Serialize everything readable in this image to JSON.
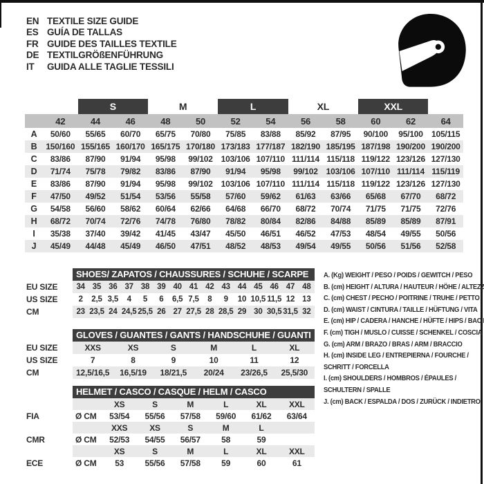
{
  "header": {
    "languages": [
      {
        "code": "EN",
        "text": "TEXTILE SIZE GUIDE"
      },
      {
        "code": "ES",
        "text": "GUÍA DE TALLAS"
      },
      {
        "code": "FR",
        "text": "GUIDE DES TAILLES TEXTILE"
      },
      {
        "code": "DE",
        "text": "TEXTILGRÖßENFÜHRUNG"
      },
      {
        "code": "IT",
        "text": "GUIDA ALLE TAGLIE TESSILI"
      }
    ],
    "logo_icon": "racing-helmet"
  },
  "colors": {
    "dark_bar": "#3d3d3d",
    "number_band": "#c2c2c2",
    "stripe": "#e9e9e9",
    "text": "#2a2a2a",
    "frame": "#101010"
  },
  "main_table": {
    "size_groups": [
      {
        "label": "S",
        "dark": true
      },
      {
        "label": "M",
        "dark": false
      },
      {
        "label": "L",
        "dark": true
      },
      {
        "label": "XL",
        "dark": false
      },
      {
        "label": "XXL",
        "dark": true
      }
    ],
    "numeric_sizes": [
      "42",
      "44",
      "46",
      "48",
      "50",
      "52",
      "54",
      "56",
      "58",
      "60",
      "62",
      "64"
    ],
    "rows": [
      {
        "letter": "A",
        "values": [
          "50/60",
          "55/65",
          "60/70",
          "65/75",
          "70/80",
          "75/85",
          "83/88",
          "85/92",
          "87/95",
          "90/100",
          "95/100",
          "105/115"
        ]
      },
      {
        "letter": "B",
        "values": [
          "150/160",
          "155/165",
          "160/170",
          "165/175",
          "170/180",
          "173/183",
          "177/187",
          "182/190",
          "185/195",
          "187/198",
          "190/200",
          "190/200"
        ]
      },
      {
        "letter": "C",
        "values": [
          "83/86",
          "87/90",
          "91/94",
          "95/98",
          "99/102",
          "103/106",
          "107/110",
          "111/114",
          "115/118",
          "119/122",
          "123/126",
          "127/130"
        ]
      },
      {
        "letter": "D",
        "values": [
          "71/74",
          "75/78",
          "79/82",
          "83/86",
          "87/90",
          "91/94",
          "95/98",
          "99/102",
          "103/106",
          "107/110",
          "111/114",
          "115/119"
        ]
      },
      {
        "letter": "E",
        "values": [
          "83/86",
          "87/90",
          "91/94",
          "95/98",
          "99/102",
          "103/106",
          "107/110",
          "111/114",
          "115/118",
          "119/122",
          "123/126",
          "127/130"
        ]
      },
      {
        "letter": "F",
        "values": [
          "47/50",
          "49/52",
          "51/54",
          "53/56",
          "55/58",
          "57/60",
          "59/62",
          "61/63",
          "63/66",
          "65/68",
          "67/70",
          "68/72"
        ]
      },
      {
        "letter": "G",
        "values": [
          "54/58",
          "56/60",
          "58/62",
          "60/64",
          "62/66",
          "64/68",
          "66/70",
          "68/72",
          "70/74",
          "71/75",
          "71/75",
          "72/76"
        ]
      },
      {
        "letter": "H",
        "values": [
          "68/72",
          "70/74",
          "72/76",
          "74/78",
          "76/80",
          "78/82",
          "80/84",
          "82/86",
          "84/88",
          "85/89",
          "85/89",
          "87/91"
        ]
      },
      {
        "letter": "I",
        "values": [
          "35/38",
          "37/40",
          "39/42",
          "41/45",
          "43/47",
          "45/50",
          "46/51",
          "46/52",
          "47/53",
          "48/54",
          "49/55",
          "50/56"
        ]
      },
      {
        "letter": "J",
        "values": [
          "45/49",
          "44/48",
          "45/49",
          "46/50",
          "47/51",
          "48/52",
          "48/53",
          "49/54",
          "49/55",
          "50/56",
          "51/56",
          "52/58"
        ]
      }
    ]
  },
  "shoes": {
    "title": "SHOES/ ZAPATOS / CHAUSSURES / SCHUHE / SCARPE",
    "rows": [
      {
        "label": "EU SIZE",
        "shaded": true,
        "values": [
          "34",
          "35",
          "36",
          "37",
          "38",
          "39",
          "40",
          "41",
          "42",
          "43",
          "44",
          "45",
          "46",
          "47",
          "48"
        ]
      },
      {
        "label": "US SIZE",
        "shaded": false,
        "values": [
          "2",
          "2,5",
          "3,5",
          "4",
          "5",
          "6",
          "6,5",
          "7,5",
          "8",
          "9",
          "10",
          "10,5",
          "11,5",
          "12",
          "13"
        ]
      },
      {
        "label": "CM",
        "shaded": true,
        "values": [
          "23",
          "23,5",
          "24",
          "24,5",
          "25,5",
          "26",
          "27",
          "27,5",
          "28",
          "28,5",
          "29",
          "30",
          "30,5",
          "31,5",
          "32"
        ]
      }
    ]
  },
  "gloves": {
    "title": "GLOVES / GUANTES / GANTS / HANDSCHUHE / GUANTI",
    "rows": [
      {
        "label": "EU SIZE",
        "shaded": true,
        "values": [
          "XXS",
          "XS",
          "S",
          "M",
          "L",
          "XL"
        ]
      },
      {
        "label": "US SIZE",
        "shaded": false,
        "values": [
          "7",
          "8",
          "9",
          "10",
          "11",
          "12"
        ]
      },
      {
        "label": "CM",
        "shaded": true,
        "values": [
          "12,5/16,5",
          "16,5/19",
          "18/21,5",
          "20/24",
          "23/26,5",
          "25,5/30"
        ]
      }
    ]
  },
  "helmet": {
    "title": "HELMET / CASCO / CASQUE / HELM / CASCO",
    "rows": [
      {
        "label": "",
        "unit": "",
        "shaded": true,
        "values": [
          "XS",
          "S",
          "M",
          "L",
          "XL",
          "XXL"
        ]
      },
      {
        "label": "FIA",
        "unit": "Ø CM",
        "shaded": false,
        "values": [
          "53/54",
          "55/56",
          "57/58",
          "59/60",
          "61/62",
          "63/64"
        ]
      },
      {
        "label": "",
        "unit": "",
        "shaded": true,
        "values": [
          "XXS",
          "XS",
          "S",
          "M",
          "L",
          ""
        ]
      },
      {
        "label": "CMR",
        "unit": "Ø CM",
        "shaded": false,
        "values": [
          "52/53",
          "54/55",
          "56/57",
          "58",
          "59",
          ""
        ]
      },
      {
        "label": "",
        "unit": "",
        "shaded": true,
        "values": [
          "XS",
          "S",
          "M",
          "L",
          "XL",
          "XXL"
        ]
      },
      {
        "label": "ECE",
        "unit": "Ø CM",
        "shaded": false,
        "values": [
          "53",
          "55/56",
          "57/58",
          "59",
          "60",
          "61"
        ]
      }
    ]
  },
  "legend": {
    "lines": [
      "A. (Kg) WEIGHT / PESO / POIDS / GEWITCH / PESO",
      "B. (cm) HEIGHT / ALTURA / HAUTEUR / HÖHE / ALTEZZA",
      "C. (cm) CHEST / PECHO / POITRINE / TRUHE / PETTO",
      "D. (cm) WAIST / CINTURA / TAILLE / HÜFTUNG / VITA",
      "E. (cm) HIP / CADERA / HANCHE / HÜFTE / HIPS /  BACINO",
      "F. (cm) TIGH / MUSLO / CUISSE / SCHENKEL / COSCIA",
      "G. (cm) ARM  / BRAZO / BRAS / ARM / BRACCIO",
      "H. (cm) INSIDE LEG / ENTREPIERNA / FOURCHE /",
      "SCHRITT / FORCELLA",
      "I.  (cm) SHOULDERS / HOMBROS / ÉPAULES /",
      "SCHULTERN / SPALLE",
      "J. (cm) BACK / ESPALDA / DOS / ZURÜCK / INDIETRO"
    ]
  }
}
